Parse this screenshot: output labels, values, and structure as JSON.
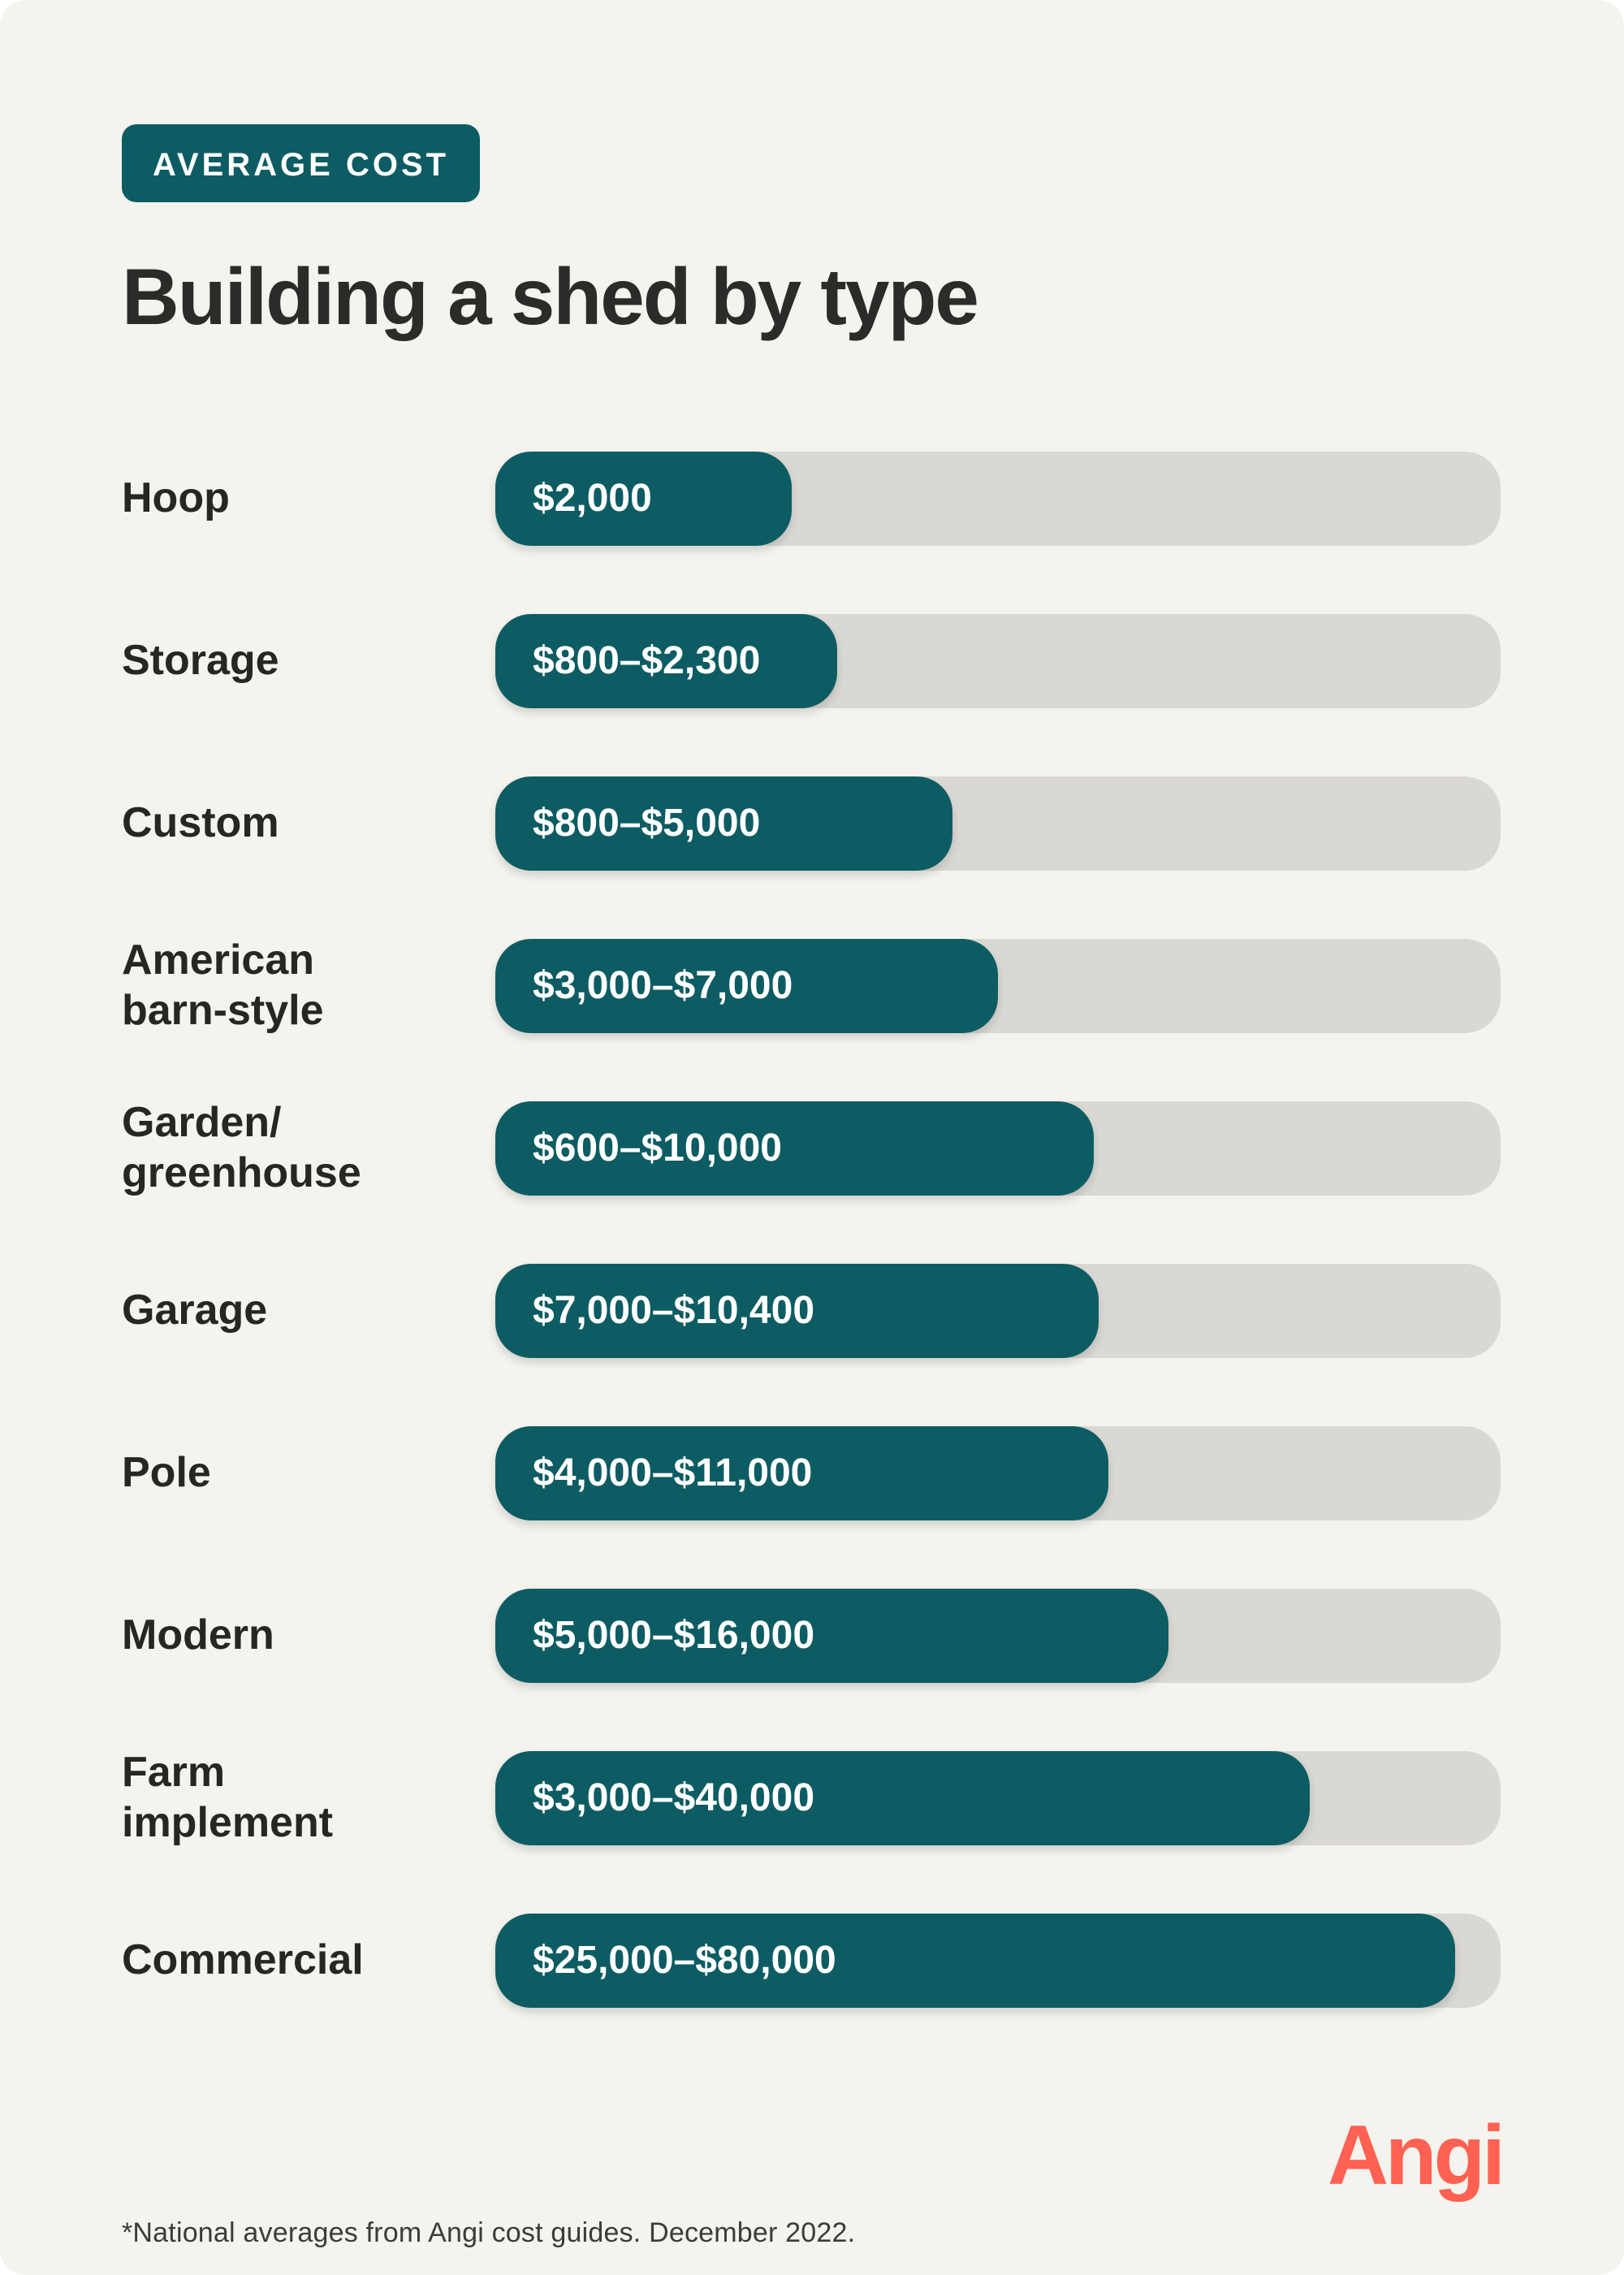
{
  "page": {
    "page_background": "#FFFFFF",
    "card_background": "#F4F3ED"
  },
  "badge": {
    "label": "AVERAGE COST",
    "background": "#0D5C63",
    "text_color": "#FFFFFF"
  },
  "title": "Building a shed by type",
  "chart_data": {
    "type": "bar",
    "orientation": "horizontal",
    "unit": "USD",
    "bar_color": "#0D5C63",
    "track_color": "#DAD8D2",
    "value_text_color": "#FFFFFF",
    "rows": [
      {
        "label": "Hoop",
        "value_label": "$2,000",
        "min": 2000,
        "max": 2000,
        "bar_pct": 29.5
      },
      {
        "label": "Storage",
        "value_label": "$800–$2,300",
        "min": 800,
        "max": 2300,
        "bar_pct": 34
      },
      {
        "label": "Custom",
        "value_label": "$800–$5,000",
        "min": 800,
        "max": 5000,
        "bar_pct": 45.5
      },
      {
        "label": "American\nbarn-style",
        "value_label": "$3,000–$7,000",
        "min": 3000,
        "max": 7000,
        "bar_pct": 50
      },
      {
        "label": "Garden/\ngreenhouse",
        "value_label": "$600–$10,000",
        "min": 600,
        "max": 10000,
        "bar_pct": 59.5
      },
      {
        "label": "Garage",
        "value_label": "$7,000–$10,400",
        "min": 7000,
        "max": 10400,
        "bar_pct": 60
      },
      {
        "label": "Pole",
        "value_label": "$4,000–$11,000",
        "min": 4000,
        "max": 11000,
        "bar_pct": 61
      },
      {
        "label": "Modern",
        "value_label": "$5,000–$16,000",
        "min": 5000,
        "max": 16000,
        "bar_pct": 67
      },
      {
        "label": "Farm\nimplement",
        "value_label": "$3,000–$40,000",
        "min": 3000,
        "max": 40000,
        "bar_pct": 81
      },
      {
        "label": "Commercial",
        "value_label": "$25,000–$80,000",
        "min": 25000,
        "max": 80000,
        "bar_pct": 95.5
      }
    ]
  },
  "footer": {
    "note": "*National averages from Angi cost guides. December 2022.",
    "logo_text": "Angi",
    "logo_color": "#FF6153"
  }
}
